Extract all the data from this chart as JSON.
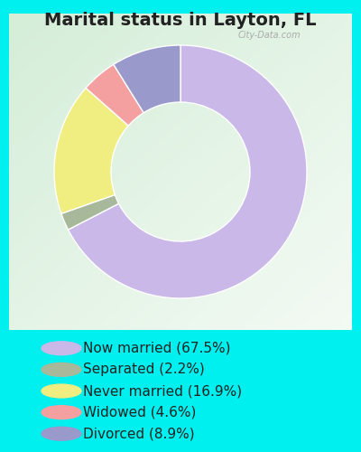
{
  "title": "Marital status in Layton, FL",
  "slices": [
    67.5,
    2.2,
    16.9,
    4.6,
    8.9
  ],
  "labels": [
    "Now married (67.5%)",
    "Separated (2.2%)",
    "Never married (16.9%)",
    "Widowed (4.6%)",
    "Divorced (8.9%)"
  ],
  "colors": [
    "#C9B8E8",
    "#A8B89A",
    "#F0EE80",
    "#F5A0A0",
    "#9999CC"
  ],
  "background_outer": "#00EFEF",
  "title_color": "#222222",
  "title_fontsize": 14,
  "legend_fontsize": 11,
  "watermark": "City-Data.com",
  "donut_width": 0.45,
  "chart_bg_left": "#c8e8d0",
  "chart_bg_right": "#f0faf0"
}
